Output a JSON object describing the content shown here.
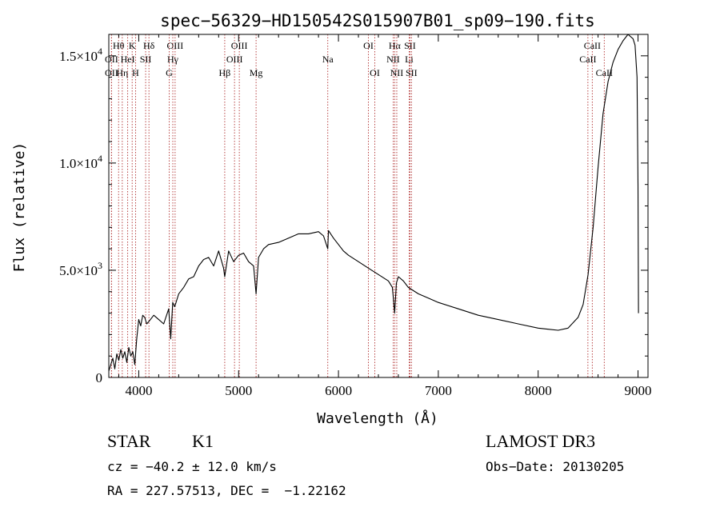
{
  "chart_data": {
    "type": "line",
    "title": "spec−56329−HD150542S015907B01_sp09−190.fits",
    "xlabel": "Wavelength (Å)",
    "ylabel": "Flux (relative)",
    "xlim": [
      3700,
      9100
    ],
    "ylim": [
      0,
      16000
    ],
    "x_ticks": [
      {
        "value": 4000,
        "label": "4000"
      },
      {
        "value": 5000,
        "label": "5000"
      },
      {
        "value": 6000,
        "label": "6000"
      },
      {
        "value": 7000,
        "label": "7000"
      },
      {
        "value": 8000,
        "label": "8000"
      },
      {
        "value": 9000,
        "label": "9000"
      }
    ],
    "y_ticks": [
      {
        "value": 0,
        "mant": "0",
        "exp": ""
      },
      {
        "value": 5000,
        "mant": "5.0×10",
        "exp": "3"
      },
      {
        "value": 10000,
        "mant": "1.0×10",
        "exp": "4"
      },
      {
        "value": 15000,
        "mant": "1.5×10",
        "exp": "4"
      }
    ],
    "series": [
      {
        "name": "flux",
        "x": [
          3700,
          3720,
          3740,
          3760,
          3780,
          3800,
          3820,
          3840,
          3860,
          3880,
          3900,
          3920,
          3940,
          3960,
          3980,
          4000,
          4020,
          4040,
          4060,
          4080,
          4100,
          4150,
          4200,
          4250,
          4300,
          4320,
          4340,
          4360,
          4400,
          4450,
          4500,
          4550,
          4600,
          4650,
          4700,
          4750,
          4800,
          4850,
          4861,
          4900,
          4950,
          5000,
          5050,
          5100,
          5150,
          5175,
          5200,
          5250,
          5300,
          5400,
          5500,
          5600,
          5700,
          5800,
          5850,
          5893,
          5900,
          5950,
          6000,
          6050,
          6100,
          6200,
          6300,
          6400,
          6500,
          6540,
          6563,
          6580,
          6600,
          6650,
          6700,
          6800,
          6900,
          7000,
          7200,
          7400,
          7600,
          7800,
          8000,
          8100,
          8200,
          8300,
          8400,
          8450,
          8500,
          8550,
          8600,
          8650,
          8700,
          8750,
          8800,
          8850,
          8900,
          8950,
          8970,
          8990,
          9000,
          9005
        ],
        "y": [
          300,
          600,
          900,
          400,
          1100,
          800,
          1300,
          900,
          1200,
          700,
          1400,
          1000,
          1200,
          600,
          1800,
          2700,
          2400,
          2900,
          2800,
          2500,
          2600,
          2900,
          2700,
          2500,
          3200,
          1800,
          3500,
          3300,
          3900,
          4200,
          4600,
          4700,
          5200,
          5500,
          5600,
          5200,
          5900,
          5100,
          4700,
          5900,
          5400,
          5700,
          5800,
          5400,
          5200,
          3900,
          5600,
          6000,
          6200,
          6300,
          6500,
          6700,
          6700,
          6800,
          6600,
          6000,
          6850,
          6500,
          6200,
          5900,
          5700,
          5400,
          5100,
          4800,
          4500,
          4200,
          3000,
          4400,
          4700,
          4500,
          4200,
          3900,
          3700,
          3500,
          3200,
          2900,
          2700,
          2500,
          2300,
          2250,
          2200,
          2300,
          2800,
          3400,
          4800,
          7000,
          9800,
          12300,
          13800,
          14700,
          15300,
          15700,
          16000,
          15800,
          15500,
          14000,
          9000,
          3000
        ]
      }
    ],
    "lines": [
      {
        "name": "Hθ",
        "wl": 3798,
        "row": 0
      },
      {
        "name": "OII",
        "wl": 3727,
        "row": 1
      },
      {
        "name": "OII",
        "wl": 3727,
        "row": 2
      },
      {
        "name": "Hη",
        "wl": 3835,
        "row": 2
      },
      {
        "name": "HeI",
        "wl": 3889,
        "row": 1
      },
      {
        "name": "K",
        "wl": 3934,
        "row": 0
      },
      {
        "name": "H",
        "wl": 3968,
        "row": 2
      },
      {
        "name": "SII",
        "wl": 4069,
        "row": 1
      },
      {
        "name": "Hδ",
        "wl": 4102,
        "row": 0
      },
      {
        "name": "OIII",
        "wl": 4364,
        "row": 0
      },
      {
        "name": "Hγ",
        "wl": 4341,
        "row": 1
      },
      {
        "name": "G",
        "wl": 4305,
        "row": 2
      },
      {
        "name": "Hβ",
        "wl": 4861,
        "row": 2
      },
      {
        "name": "OIII",
        "wl": 4959,
        "row": 1
      },
      {
        "name": "OIII",
        "wl": 5007,
        "row": 0
      },
      {
        "name": "Mg",
        "wl": 5175,
        "row": 2
      },
      {
        "name": "Na",
        "wl": 5893,
        "row": 1
      },
      {
        "name": "OI",
        "wl": 6300,
        "row": 0
      },
      {
        "name": "OI",
        "wl": 6364,
        "row": 2
      },
      {
        "name": "Hα",
        "wl": 6563,
        "row": 0
      },
      {
        "name": "NII",
        "wl": 6548,
        "row": 1
      },
      {
        "name": "NII",
        "wl": 6584,
        "row": 2
      },
      {
        "name": "SII",
        "wl": 6716,
        "row": 0
      },
      {
        "name": "Li",
        "wl": 6708,
        "row": 1
      },
      {
        "name": "SII",
        "wl": 6731,
        "row": 2
      },
      {
        "name": "CaII",
        "wl": 8542,
        "row": 0
      },
      {
        "name": "CaII",
        "wl": 8498,
        "row": 1
      },
      {
        "name": "CaII",
        "wl": 8662,
        "row": 2
      }
    ]
  },
  "info": {
    "class": "STAR",
    "subclass": "K1",
    "cz": "cz = −40.2 ± 12.0 km/s",
    "radec": "RA = 227.57513, DEC =  −1.22162",
    "survey": "LAMOST DR3",
    "obs_date": "Obs−Date: 20130205"
  }
}
